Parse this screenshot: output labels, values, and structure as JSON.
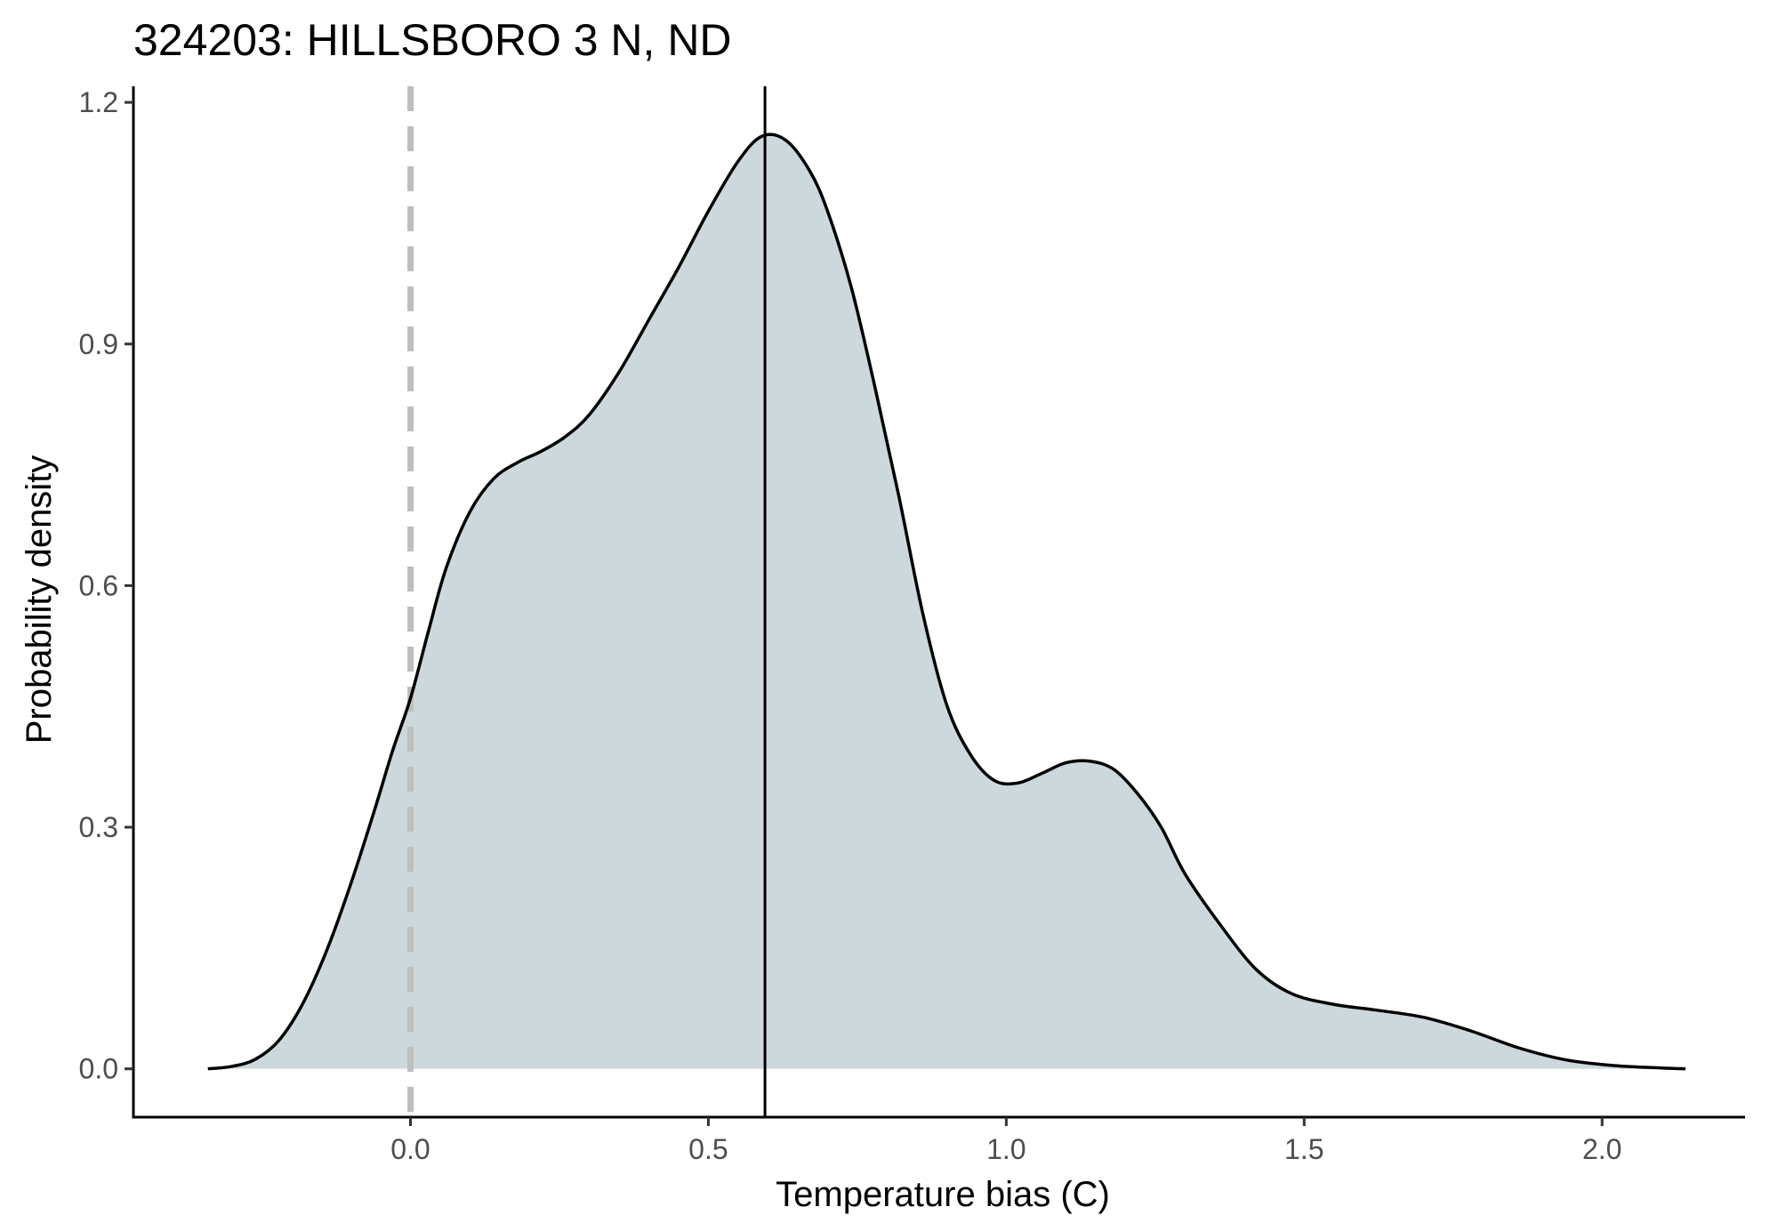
{
  "chart_data": {
    "type": "area",
    "title": "324203: HILLSBORO 3 N, ND",
    "xlabel": "Temperature bias (C)",
    "ylabel": "Probability density",
    "xlim": [
      -0.465,
      2.24
    ],
    "ylim": [
      -0.06,
      1.22
    ],
    "x_ticks": [
      0.0,
      0.5,
      1.0,
      1.5,
      2.0
    ],
    "x_tick_labels": [
      "0.0",
      "0.5",
      "1.0",
      "1.5",
      "2.0"
    ],
    "y_ticks": [
      0.0,
      0.3,
      0.6,
      0.9,
      1.2
    ],
    "y_tick_labels": [
      "0.0",
      "0.3",
      "0.6",
      "0.9",
      "1.2"
    ],
    "grid": false,
    "series": [
      {
        "name": "density",
        "fill_color": "#cdd8dc",
        "line_color": "#000000",
        "x": [
          -0.34,
          -0.3,
          -0.26,
          -0.22,
          -0.18,
          -0.14,
          -0.1,
          -0.06,
          -0.03,
          0.0,
          0.03,
          0.06,
          0.1,
          0.14,
          0.18,
          0.22,
          0.26,
          0.3,
          0.35,
          0.4,
          0.45,
          0.5,
          0.55,
          0.59,
          0.63,
          0.67,
          0.7,
          0.74,
          0.78,
          0.82,
          0.86,
          0.9,
          0.94,
          0.98,
          1.02,
          1.06,
          1.1,
          1.14,
          1.18,
          1.22,
          1.26,
          1.3,
          1.36,
          1.42,
          1.48,
          1.55,
          1.62,
          1.7,
          1.78,
          1.86,
          1.94,
          2.02,
          2.1,
          2.14
        ],
        "y": [
          0.0,
          0.003,
          0.012,
          0.036,
          0.082,
          0.148,
          0.23,
          0.322,
          0.395,
          0.46,
          0.543,
          0.622,
          0.692,
          0.733,
          0.753,
          0.767,
          0.785,
          0.812,
          0.865,
          0.93,
          0.995,
          1.065,
          1.127,
          1.158,
          1.153,
          1.115,
          1.065,
          0.97,
          0.845,
          0.71,
          0.565,
          0.452,
          0.39,
          0.358,
          0.355,
          0.367,
          0.38,
          0.382,
          0.372,
          0.342,
          0.3,
          0.242,
          0.178,
          0.123,
          0.093,
          0.08,
          0.073,
          0.064,
          0.047,
          0.026,
          0.011,
          0.004,
          0.001,
          0.0
        ]
      }
    ],
    "reference_lines": [
      {
        "name": "zero-bias",
        "x": 0.0,
        "style": "dashed",
        "color": "#bebebe"
      },
      {
        "name": "mean-bias",
        "x": 0.595,
        "style": "solid",
        "color": "#000000"
      }
    ]
  }
}
